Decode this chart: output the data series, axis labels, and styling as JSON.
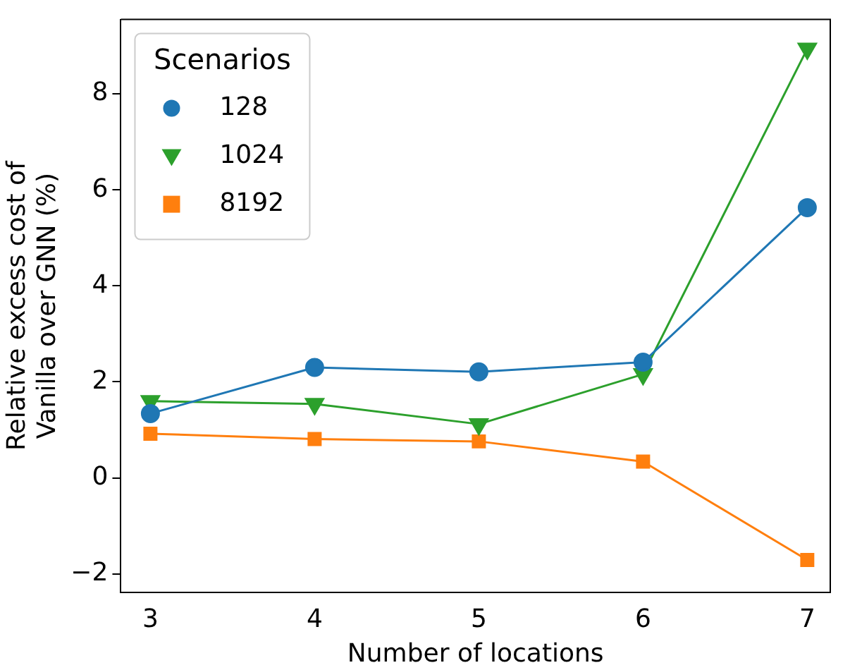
{
  "chart_data": {
    "type": "line",
    "xlabel": "Number of locations",
    "ylabel": "Relative excess cost of\nVanilla over GNN (%)",
    "legend_title": "Scenarios",
    "legend": "top left",
    "grid": false,
    "x": [
      3,
      4,
      5,
      6,
      7
    ],
    "xlim": [
      2.82,
      7.14
    ],
    "xticks": [
      3,
      4,
      5,
      6,
      7
    ],
    "ylim": [
      -2.38,
      9.55
    ],
    "yticks": [
      {
        "value": -2,
        "label": "−2"
      },
      0,
      2,
      4,
      6,
      8
    ],
    "series": [
      {
        "name": "128",
        "color": "#1f77b4",
        "marker": "circle",
        "values": [
          1.34,
          2.3,
          2.21,
          2.41,
          5.63
        ]
      },
      {
        "name": "1024",
        "color": "#2ca02c",
        "marker": "triangle",
        "values": [
          1.6,
          1.54,
          1.12,
          2.16,
          8.94
        ]
      },
      {
        "name": "8192",
        "color": "#ff7f0e",
        "marker": "square",
        "values": [
          0.92,
          0.81,
          0.76,
          0.34,
          -1.71
        ]
      }
    ]
  }
}
